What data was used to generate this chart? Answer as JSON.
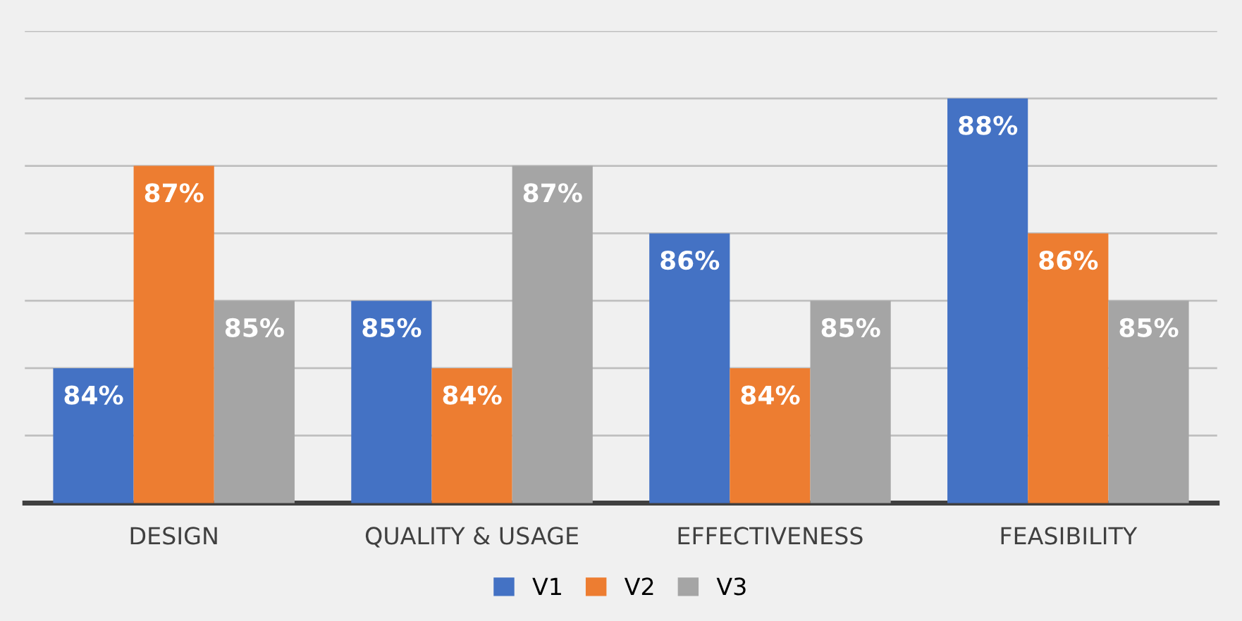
{
  "chart_data": {
    "type": "bar",
    "categories": [
      "DESIGN",
      "QUALITY & USAGE",
      "EFFECTIVENESS",
      "FEASIBILITY"
    ],
    "series": [
      {
        "name": "V1",
        "color": "#4472c4",
        "values": [
          84,
          85,
          86,
          88
        ],
        "value_labels": [
          "84%",
          "85%",
          "86%",
          "88%"
        ]
      },
      {
        "name": "V2",
        "color": "#ed7d31",
        "values": [
          87,
          84,
          84,
          86
        ],
        "value_labels": [
          "87%",
          "84%",
          "84%",
          "86%"
        ]
      },
      {
        "name": "V3",
        "color": "#a5a5a5",
        "values": [
          85,
          87,
          85,
          85
        ],
        "value_labels": [
          "85%",
          "87%",
          "85%",
          "85%"
        ]
      }
    ],
    "ylim": [
      82,
      89
    ],
    "tick_labels": "x",
    "grid": "y",
    "legend": "bottom"
  }
}
